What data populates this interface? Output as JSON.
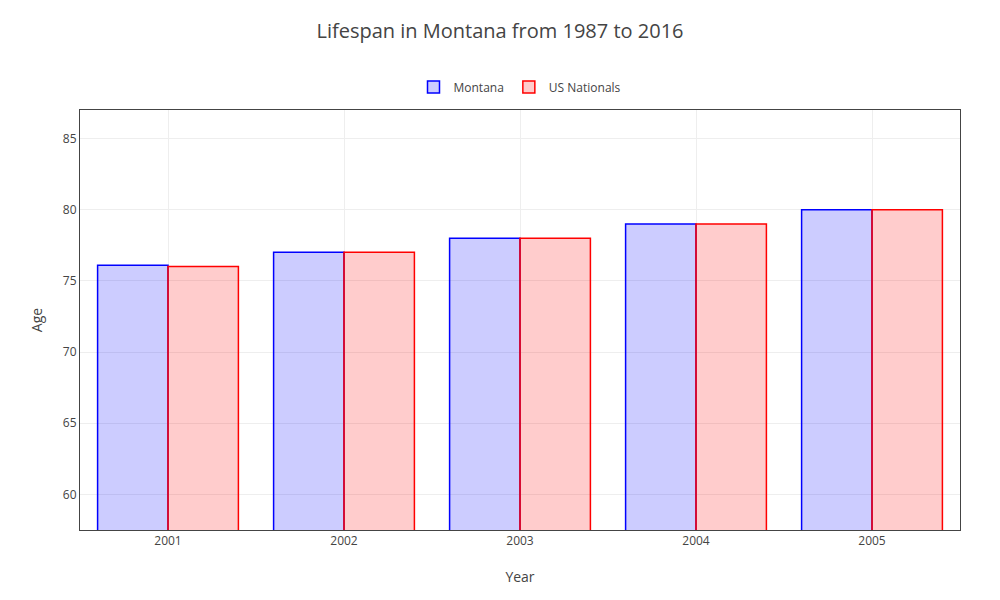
{
  "chart_data": {
    "type": "bar",
    "title": "Lifespan in Montana from 1987 to 2016",
    "x_label": "Year",
    "y_label": "Age",
    "categories": [
      "2001",
      "2002",
      "2003",
      "2004",
      "2005"
    ],
    "series": [
      {
        "name": "Montana",
        "color": "#0000ff",
        "values": [
          76.1,
          77.0,
          78.0,
          79.0,
          80.0
        ]
      },
      {
        "name": "US Nationals",
        "color": "#ff0000",
        "values": [
          76.0,
          77.0,
          78.0,
          79.0,
          80.0
        ]
      }
    ],
    "ylim": [
      57.5,
      87
    ],
    "yticks": [
      60,
      65,
      70,
      75,
      80,
      85
    ],
    "grid": true,
    "legend": "top"
  }
}
